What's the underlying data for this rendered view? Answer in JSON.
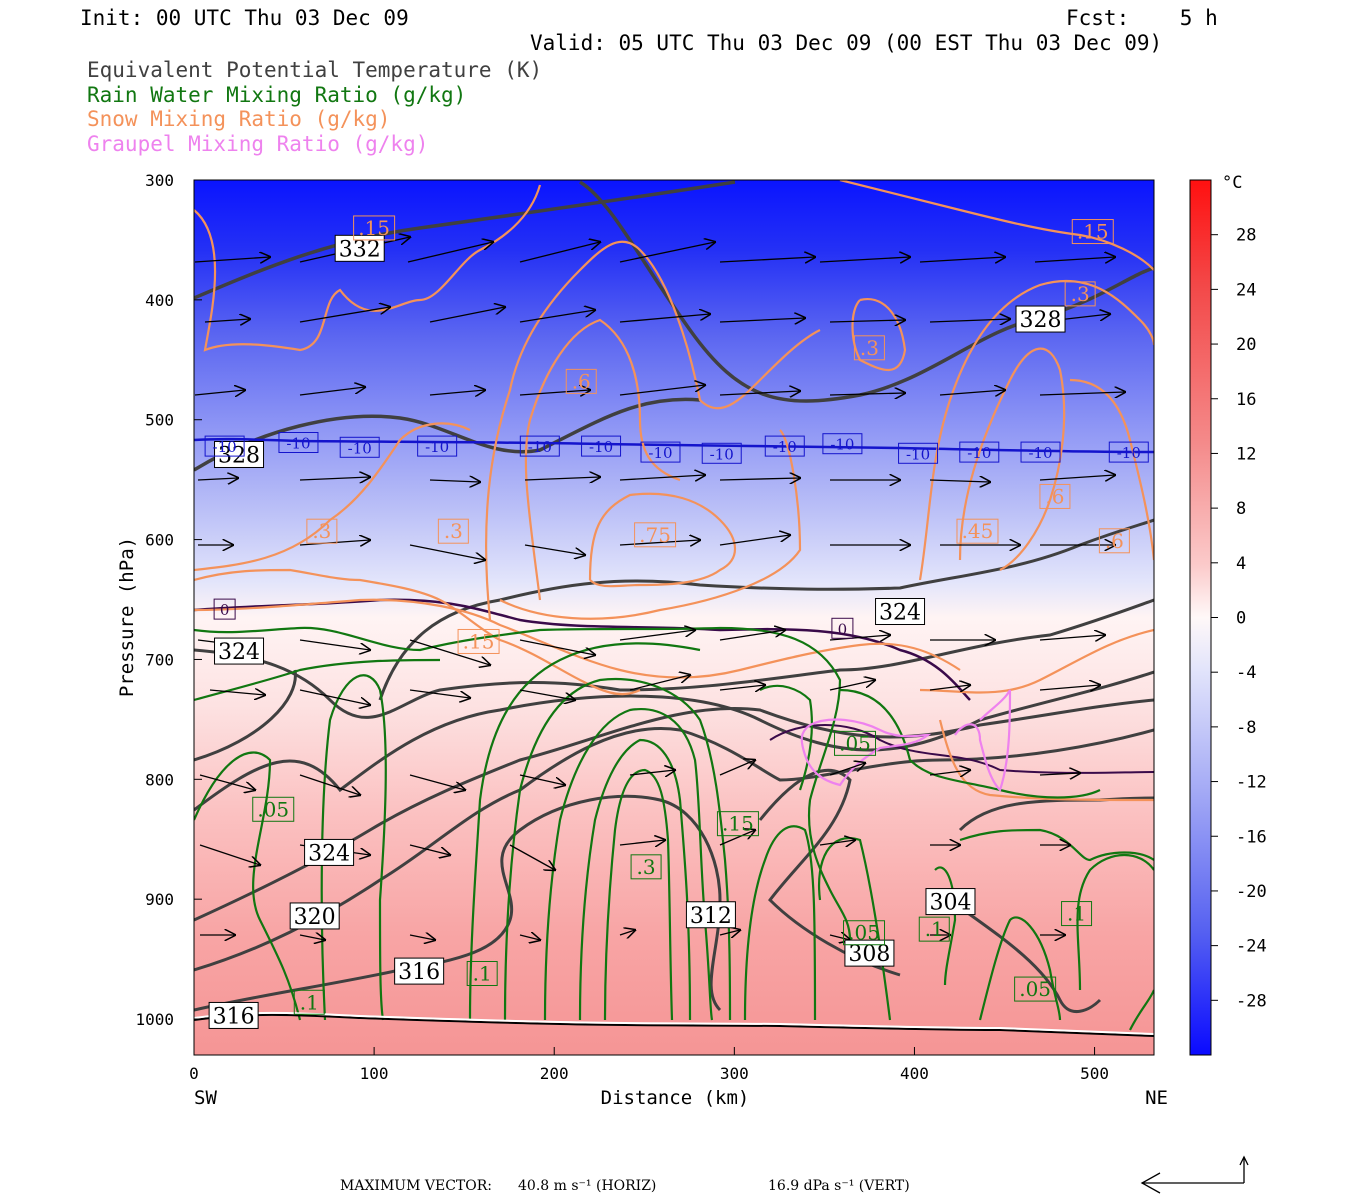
{
  "header": {
    "init": "Init: 00 UTC Thu 03 Dec 09",
    "fcst": "Fcst:    5 h",
    "valid": "Valid: 05 UTC Thu 03 Dec 09 (00 EST Thu 03 Dec 09)",
    "fields": [
      {
        "text": "Equivalent Potential Temperature (K)",
        "color": "#404040"
      },
      {
        "text": "Rain Water Mixing Ratio (g/kg)",
        "color": "#117711"
      },
      {
        "text": "Snow Mixing Ratio (g/kg)",
        "color": "#f4925a"
      },
      {
        "text": "Graupel Mixing Ratio (g/kg)",
        "color": "#ee82ee"
      }
    ]
  },
  "chart_data": {
    "type": "cross-section",
    "xlabel": "Distance (km)",
    "ylabel": "Pressure (hPa)",
    "x_ticks": [
      "0",
      "100",
      "200",
      "300",
      "400",
      "500"
    ],
    "y_ticks": [
      "300",
      "400",
      "500",
      "600",
      "700",
      "800",
      "900",
      "1000"
    ],
    "xlim": [
      0,
      533
    ],
    "ylim": [
      1030,
      300
    ],
    "x_ends": {
      "left": "SW",
      "right": "NE"
    },
    "colorbar": {
      "unit": "°C",
      "ticks": [
        "28",
        "24",
        "20",
        "16",
        "12",
        "8",
        "4",
        "0",
        "-4",
        "-8",
        "-12",
        "-16",
        "-20",
        "-24",
        "-28"
      ],
      "range": [
        -32,
        32
      ]
    },
    "colors": {
      "theta_e": "#404040",
      "rain": "#117711",
      "snow": "#f4925a",
      "graupel": "#ee82ee",
      "isotherm_minus10": "#1414cc",
      "isotherm_zero": "#3a0a4a"
    },
    "contour_labels": [
      {
        "text": "332",
        "x": 92,
        "p": 357,
        "kind": "theta_e"
      },
      {
        "text": "328",
        "x": 470,
        "p": 416,
        "kind": "theta_e"
      },
      {
        "text": "328",
        "x": 25,
        "p": 529,
        "kind": "theta_e"
      },
      {
        "text": "324",
        "x": 392,
        "p": 660,
        "kind": "theta_e"
      },
      {
        "text": "324",
        "x": 25,
        "p": 693,
        "kind": "theta_e"
      },
      {
        "text": "324",
        "x": 75,
        "p": 861,
        "kind": "theta_e"
      },
      {
        "text": "320",
        "x": 67,
        "p": 914,
        "kind": "theta_e"
      },
      {
        "text": "316",
        "x": 125,
        "p": 960,
        "kind": "theta_e"
      },
      {
        "text": "316",
        "x": 22,
        "p": 997,
        "kind": "theta_e"
      },
      {
        "text": "312",
        "x": 287,
        "p": 913,
        "kind": "theta_e"
      },
      {
        "text": "308",
        "x": 375,
        "p": 945,
        "kind": "theta_e"
      },
      {
        "text": "304",
        "x": 420,
        "p": 902,
        "kind": "theta_e"
      },
      {
        "text": ".15",
        "x": 100,
        "p": 340,
        "kind": "snow"
      },
      {
        "text": ".15",
        "x": 499,
        "p": 343,
        "kind": "snow"
      },
      {
        "text": ".3",
        "x": 492,
        "p": 395,
        "kind": "snow"
      },
      {
        "text": ".3",
        "x": 375,
        "p": 440,
        "kind": "snow"
      },
      {
        "text": ".6",
        "x": 215,
        "p": 468,
        "kind": "snow"
      },
      {
        "text": ".3",
        "x": 71,
        "p": 593,
        "kind": "snow"
      },
      {
        "text": ".3",
        "x": 144,
        "p": 593,
        "kind": "snow"
      },
      {
        "text": ".75",
        "x": 256,
        "p": 596,
        "kind": "snow"
      },
      {
        "text": ".45",
        "x": 435,
        "p": 593,
        "kind": "snow"
      },
      {
        "text": ".6",
        "x": 511,
        "p": 601,
        "kind": "snow"
      },
      {
        "text": ".6",
        "x": 478,
        "p": 564,
        "kind": "snow"
      },
      {
        "text": ".15",
        "x": 158,
        "p": 685,
        "kind": "snow"
      },
      {
        "text": ".05",
        "x": 367,
        "p": 770,
        "kind": "rain"
      },
      {
        "text": ".05",
        "x": 44,
        "p": 825,
        "kind": "rain"
      },
      {
        "text": ".15",
        "x": 302,
        "p": 837,
        "kind": "rain"
      },
      {
        "text": ".3",
        "x": 251,
        "p": 873,
        "kind": "rain"
      },
      {
        "text": ".05",
        "x": 372,
        "p": 928,
        "kind": "rain"
      },
      {
        "text": ".1",
        "x": 411,
        "p": 925,
        "kind": "rain"
      },
      {
        "text": ".1",
        "x": 490,
        "p": 912,
        "kind": "rain"
      },
      {
        "text": ".05",
        "x": 467,
        "p": 975,
        "kind": "rain"
      },
      {
        "text": ".1",
        "x": 160,
        "p": 962,
        "kind": "rain"
      },
      {
        "text": ".1",
        "x": 64,
        "p": 986,
        "kind": "rain"
      }
    ],
    "isotherm_labels": [
      {
        "text": "-10",
        "x": 17,
        "p": 522
      },
      {
        "text": "-10",
        "x": 58,
        "p": 519
      },
      {
        "text": "-10",
        "x": 92,
        "p": 523
      },
      {
        "text": "-10",
        "x": 135,
        "p": 522
      },
      {
        "text": "-10",
        "x": 192,
        "p": 522
      },
      {
        "text": "-10",
        "x": 226,
        "p": 522
      },
      {
        "text": "-10",
        "x": 259,
        "p": 527
      },
      {
        "text": "-10",
        "x": 293,
        "p": 528
      },
      {
        "text": "-10",
        "x": 328,
        "p": 522
      },
      {
        "text": "-10",
        "x": 360,
        "p": 520
      },
      {
        "text": "-10",
        "x": 402,
        "p": 528
      },
      {
        "text": "-10",
        "x": 436,
        "p": 527
      },
      {
        "text": "-10",
        "x": 470,
        "p": 527
      },
      {
        "text": "-10",
        "x": 519,
        "p": 527
      },
      {
        "text": "0",
        "x": 17,
        "p": 658
      },
      {
        "text": "0",
        "x": 360,
        "p": 674
      }
    ]
  },
  "footer": {
    "label": "MAXIMUM VECTOR:",
    "horiz": "40.8 m s⁻¹ (HORIZ)",
    "vert": "16.9 dPa s⁻¹ (VERT)"
  }
}
